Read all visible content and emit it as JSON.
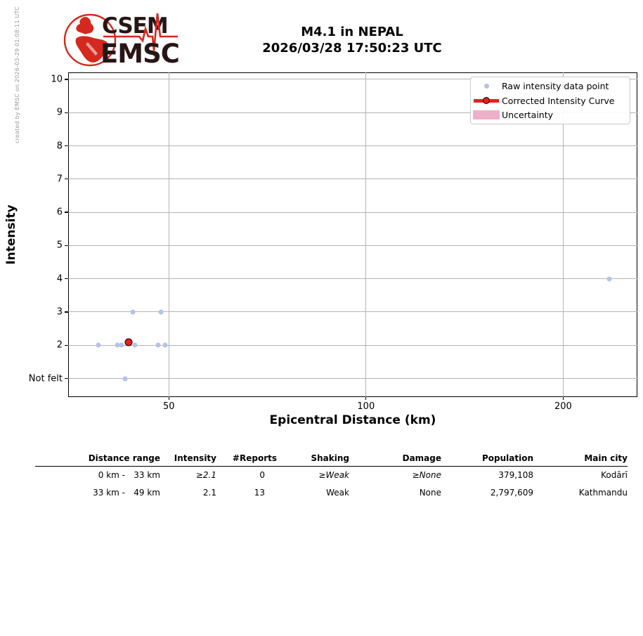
{
  "watermark": "created by EMSC on 2026-03-29 01:08:11 UTC",
  "logo": {
    "line1": "CSEM",
    "line2": "EMSC"
  },
  "title": {
    "line1": "M4.1 in NEPAL",
    "line2": "2026/03/28 17:50:23 UTC"
  },
  "chart_data": {
    "type": "scatter",
    "title": "M4.1 in NEPAL 2026/03/28 17:50:23 UTC",
    "xlabel": "Epicentral Distance (km)",
    "ylabel": "Intensity",
    "x_scale": "log",
    "xlim": [
      35.1,
      259.6
    ],
    "ylim": [
      0.44,
      10.21
    ],
    "grid": true,
    "x_ticks": [
      {
        "v": 50,
        "label": "50"
      },
      {
        "v": 100,
        "label": "100"
      },
      {
        "v": 200,
        "label": "200"
      }
    ],
    "y_ticks": [
      {
        "v": 10,
        "label": "10"
      },
      {
        "v": 9,
        "label": "9"
      },
      {
        "v": 8,
        "label": "8"
      },
      {
        "v": 7,
        "label": "7"
      },
      {
        "v": 6,
        "label": "6"
      },
      {
        "v": 5,
        "label": "5"
      },
      {
        "v": 4,
        "label": "4"
      },
      {
        "v": 3,
        "label": "3"
      },
      {
        "v": 2,
        "label": "2"
      },
      {
        "v": 1,
        "label": "Not felt"
      }
    ],
    "series": [
      {
        "name": "Raw intensity data point",
        "marker": "dot",
        "color": "#b4c3e8",
        "points": [
          [
            39.0,
            2
          ],
          [
            41.7,
            2
          ],
          [
            42.3,
            2
          ],
          [
            44.4,
            2
          ],
          [
            48.2,
            2
          ],
          [
            49.4,
            2
          ],
          [
            44.1,
            3
          ],
          [
            48.6,
            3
          ],
          [
            42.9,
            1
          ],
          [
            235.0,
            4
          ]
        ]
      },
      {
        "name": "Corrected Intensity Curve",
        "marker": "line-circle",
        "color": "#ee1c1c",
        "points": [
          [
            43.4,
            2.1
          ]
        ]
      }
    ],
    "legend": {
      "position": "top-right",
      "entries": [
        {
          "label": "Raw intensity data point",
          "swatch": "dot",
          "color": "#b4c3e8"
        },
        {
          "label": "Corrected Intensity Curve",
          "swatch": "line-circle",
          "color": "#ee1c1c"
        },
        {
          "label": "Uncertainty",
          "swatch": "patch",
          "color": "#edb0c8"
        }
      ]
    },
    "grid_color": "#b4b4b4"
  },
  "table": {
    "headers": [
      "Distance range",
      "Intensity",
      "#Reports",
      "Shaking",
      "Damage",
      "Population",
      "Main city"
    ],
    "rows": [
      {
        "range_from": "0 km -",
        "range_to": "33 km",
        "intensity": "≥2.1",
        "reports": "0",
        "shaking": "≥Weak",
        "damage": "≥None",
        "population": "379,108",
        "city": "Kodārī"
      },
      {
        "range_from": "33 km -",
        "range_to": "49 km",
        "intensity": "2.1",
        "reports": "13",
        "shaking": "Weak",
        "damage": "None",
        "population": "2,797,609",
        "city": "Kathmandu"
      }
    ]
  },
  "colors": {
    "logo_red": "#d5281e",
    "logo_text": "#261615",
    "raw_point": "#b4c3e8",
    "corrected_red": "#ee1c1c",
    "uncertainty_pink": "#edb0c8",
    "grid": "#b4b4b4",
    "watermark_gray": "#9a9a9a"
  }
}
